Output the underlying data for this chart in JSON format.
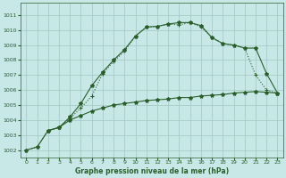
{
  "xlabel": "Graphe pression niveau de la mer (hPa)",
  "background_color": "#c8e8e8",
  "grid_color": "#a0c8c0",
  "line_color": "#2a5f2a",
  "ylim": [
    1001.5,
    1011.8
  ],
  "xlim": [
    -0.5,
    23.5
  ],
  "yticks": [
    1002,
    1003,
    1004,
    1005,
    1006,
    1007,
    1008,
    1009,
    1010,
    1011
  ],
  "xticks": [
    0,
    1,
    2,
    3,
    4,
    5,
    6,
    7,
    8,
    9,
    10,
    11,
    12,
    13,
    14,
    15,
    16,
    17,
    18,
    19,
    20,
    21,
    22,
    23
  ],
  "series1_x": [
    0,
    1,
    2,
    3,
    4,
    5,
    6,
    7,
    8,
    9,
    10,
    11,
    12,
    13,
    14,
    15,
    16,
    17,
    18,
    19,
    20,
    21,
    22,
    23
  ],
  "series1_y": [
    1002.0,
    1002.2,
    1003.3,
    1003.5,
    1004.1,
    1004.8,
    1005.6,
    1007.1,
    1007.9,
    1008.6,
    1009.6,
    1010.2,
    1010.25,
    1010.4,
    1010.35,
    1010.5,
    1010.2,
    1009.5,
    1009.1,
    1009.0,
    1008.8,
    1007.0,
    1006.0,
    1005.8
  ],
  "series2_x": [
    2,
    3,
    4,
    5,
    6,
    7,
    8,
    9,
    10,
    11,
    12,
    13,
    14,
    15,
    16,
    17,
    18,
    19,
    20,
    21,
    22,
    23
  ],
  "series2_y": [
    1003.3,
    1003.5,
    1004.2,
    1005.1,
    1006.3,
    1007.2,
    1008.0,
    1008.7,
    1009.6,
    1010.2,
    1010.25,
    1010.4,
    1010.5,
    1010.5,
    1010.3,
    1009.5,
    1009.1,
    1009.0,
    1008.8,
    1008.8,
    1007.1,
    1005.8
  ],
  "series3_x": [
    0,
    1,
    2,
    3,
    4,
    5,
    6,
    7,
    8,
    9,
    10,
    11,
    12,
    13,
    14,
    15,
    16,
    17,
    18,
    19,
    20,
    21,
    22,
    23
  ],
  "series3_y": [
    1002.0,
    1002.2,
    1003.3,
    1003.5,
    1004.0,
    1004.3,
    1004.6,
    1004.8,
    1005.0,
    1005.1,
    1005.2,
    1005.3,
    1005.35,
    1005.4,
    1005.5,
    1005.5,
    1005.6,
    1005.65,
    1005.7,
    1005.8,
    1005.85,
    1005.9,
    1005.85,
    1005.8
  ]
}
